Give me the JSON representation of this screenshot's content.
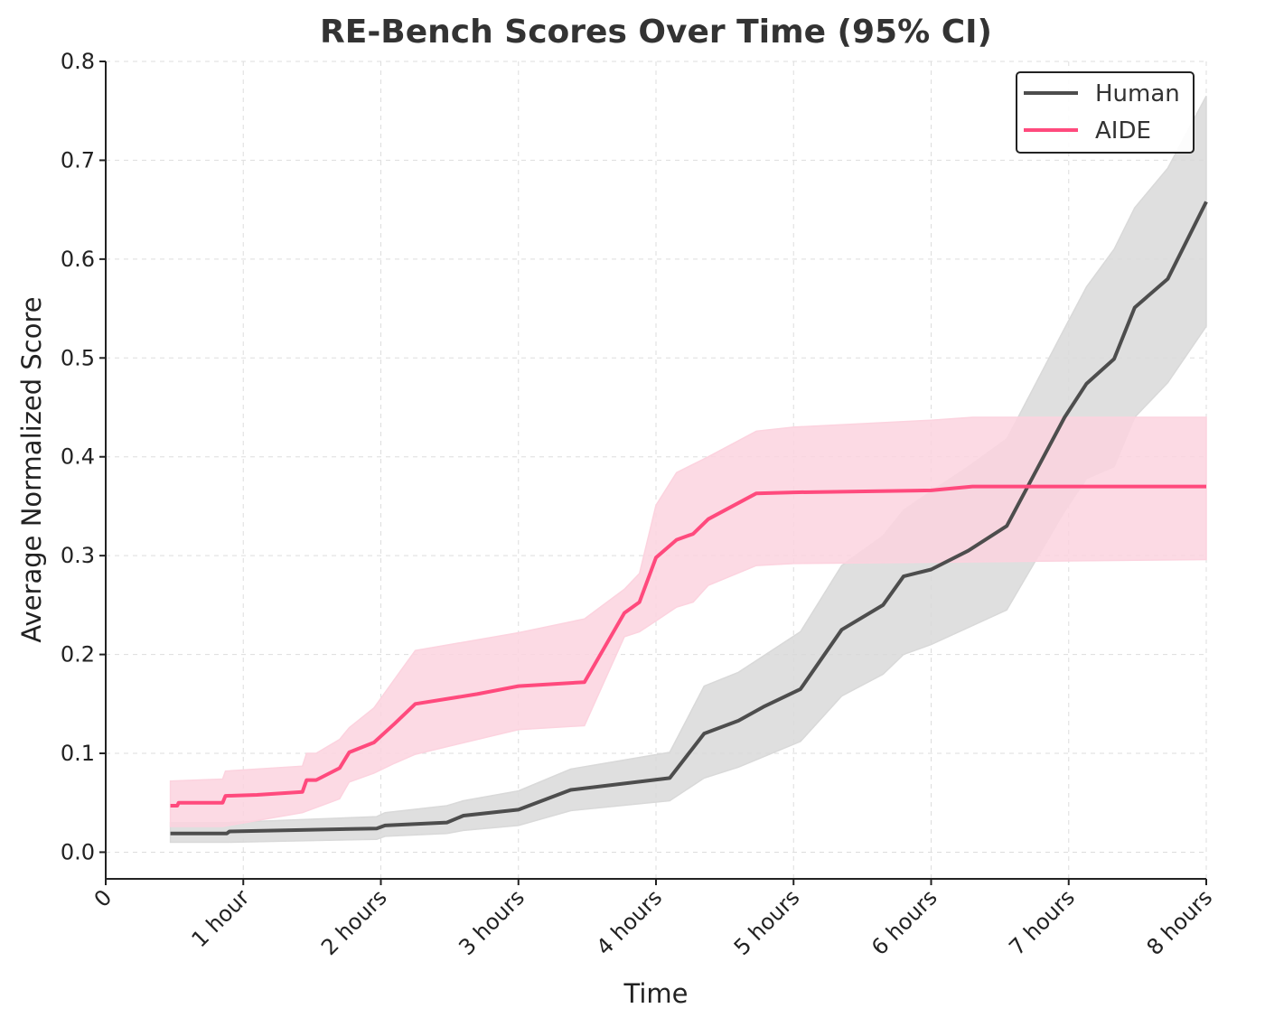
{
  "chart_data": {
    "type": "line",
    "title": "RE-Bench Scores Over Time (95% CI)",
    "xlabel": "Time",
    "ylabel": "Average Normalized Score",
    "xlim": [
      0,
      8
    ],
    "ylim": [
      -0.027,
      0.8
    ],
    "x_ticks": [
      {
        "value": 0,
        "label": "0"
      },
      {
        "value": 1,
        "label": "1 hour"
      },
      {
        "value": 2,
        "label": "2 hours"
      },
      {
        "value": 3,
        "label": "3 hours"
      },
      {
        "value": 4,
        "label": "4 hours"
      },
      {
        "value": 5,
        "label": "5 hours"
      },
      {
        "value": 6,
        "label": "6 hours"
      },
      {
        "value": 7,
        "label": "7 hours"
      },
      {
        "value": 8,
        "label": "8 hours"
      }
    ],
    "y_ticks": [
      {
        "value": 0.0,
        "label": "0.0"
      },
      {
        "value": 0.1,
        "label": "0.1"
      },
      {
        "value": 0.2,
        "label": "0.2"
      },
      {
        "value": 0.3,
        "label": "0.3"
      },
      {
        "value": 0.4,
        "label": "0.4"
      },
      {
        "value": 0.5,
        "label": "0.5"
      },
      {
        "value": 0.6,
        "label": "0.6"
      },
      {
        "value": 0.7,
        "label": "0.7"
      },
      {
        "value": 0.8,
        "label": "0.8"
      }
    ],
    "grid": true,
    "legend_position": "top-right",
    "series": [
      {
        "name": "Human",
        "color": "#4d4d4d",
        "band_color": "#d9d9d9",
        "points": [
          [
            0.47,
            0.019
          ],
          [
            0.88,
            0.019
          ],
          [
            0.9,
            0.021
          ],
          [
            1.97,
            0.024
          ],
          [
            2.03,
            0.027
          ],
          [
            2.48,
            0.03
          ],
          [
            2.6,
            0.037
          ],
          [
            3.0,
            0.043
          ],
          [
            3.38,
            0.063
          ],
          [
            4.1,
            0.075
          ],
          [
            4.35,
            0.12
          ],
          [
            4.6,
            0.133
          ],
          [
            4.78,
            0.147
          ],
          [
            5.05,
            0.165
          ],
          [
            5.35,
            0.225
          ],
          [
            5.65,
            0.25
          ],
          [
            5.8,
            0.279
          ],
          [
            6.0,
            0.286
          ],
          [
            6.27,
            0.305
          ],
          [
            6.55,
            0.33
          ],
          [
            6.97,
            0.44
          ],
          [
            7.13,
            0.474
          ],
          [
            7.33,
            0.499
          ],
          [
            7.48,
            0.551
          ],
          [
            7.72,
            0.58
          ],
          [
            8.0,
            0.658
          ]
        ],
        "lower": [
          [
            0.47,
            0.01
          ],
          [
            0.88,
            0.01
          ],
          [
            1.97,
            0.013
          ],
          [
            2.03,
            0.016
          ],
          [
            2.48,
            0.019
          ],
          [
            2.6,
            0.022
          ],
          [
            3.0,
            0.027
          ],
          [
            3.38,
            0.042
          ],
          [
            4.1,
            0.052
          ],
          [
            4.35,
            0.075
          ],
          [
            4.6,
            0.086
          ],
          [
            5.05,
            0.112
          ],
          [
            5.35,
            0.158
          ],
          [
            5.65,
            0.18
          ],
          [
            5.8,
            0.2
          ],
          [
            6.0,
            0.21
          ],
          [
            6.55,
            0.245
          ],
          [
            6.97,
            0.345
          ],
          [
            7.13,
            0.378
          ],
          [
            7.33,
            0.39
          ],
          [
            7.48,
            0.44
          ],
          [
            7.72,
            0.475
          ],
          [
            8.0,
            0.532
          ]
        ],
        "upper": [
          [
            0.47,
            0.03
          ],
          [
            0.88,
            0.03
          ],
          [
            1.97,
            0.036
          ],
          [
            2.03,
            0.04
          ],
          [
            2.48,
            0.047
          ],
          [
            2.6,
            0.052
          ],
          [
            3.0,
            0.062
          ],
          [
            3.38,
            0.084
          ],
          [
            4.1,
            0.101
          ],
          [
            4.35,
            0.168
          ],
          [
            4.6,
            0.182
          ],
          [
            5.05,
            0.223
          ],
          [
            5.35,
            0.29
          ],
          [
            5.65,
            0.32
          ],
          [
            5.8,
            0.346
          ],
          [
            6.0,
            0.365
          ],
          [
            6.27,
            0.39
          ],
          [
            6.55,
            0.418
          ],
          [
            6.97,
            0.53
          ],
          [
            7.13,
            0.572
          ],
          [
            7.33,
            0.61
          ],
          [
            7.48,
            0.652
          ],
          [
            7.72,
            0.692
          ],
          [
            8.0,
            0.765
          ]
        ]
      },
      {
        "name": "AIDE",
        "color": "#ff4a7d",
        "band_color": "#fcd3df",
        "points": [
          [
            0.47,
            0.047
          ],
          [
            0.52,
            0.047
          ],
          [
            0.53,
            0.05
          ],
          [
            0.85,
            0.05
          ],
          [
            0.87,
            0.057
          ],
          [
            1.1,
            0.058
          ],
          [
            1.43,
            0.061
          ],
          [
            1.46,
            0.073
          ],
          [
            1.53,
            0.073
          ],
          [
            1.7,
            0.085
          ],
          [
            1.77,
            0.101
          ],
          [
            1.95,
            0.111
          ],
          [
            2.1,
            0.13
          ],
          [
            2.25,
            0.15
          ],
          [
            2.7,
            0.16
          ],
          [
            3.0,
            0.168
          ],
          [
            3.48,
            0.172
          ],
          [
            3.77,
            0.242
          ],
          [
            3.88,
            0.253
          ],
          [
            4.0,
            0.298
          ],
          [
            4.15,
            0.316
          ],
          [
            4.27,
            0.322
          ],
          [
            4.38,
            0.337
          ],
          [
            4.73,
            0.363
          ],
          [
            5.0,
            0.364
          ],
          [
            6.0,
            0.366
          ],
          [
            6.3,
            0.37
          ],
          [
            8.0,
            0.37
          ]
        ],
        "lower": [
          [
            0.47,
            0.026
          ],
          [
            0.85,
            0.026
          ],
          [
            1.43,
            0.04
          ],
          [
            1.7,
            0.054
          ],
          [
            1.77,
            0.071
          ],
          [
            1.95,
            0.08
          ],
          [
            2.1,
            0.09
          ],
          [
            2.25,
            0.099
          ],
          [
            3.0,
            0.124
          ],
          [
            3.48,
            0.128
          ],
          [
            3.77,
            0.218
          ],
          [
            3.88,
            0.223
          ],
          [
            4.0,
            0.234
          ],
          [
            4.15,
            0.248
          ],
          [
            4.27,
            0.253
          ],
          [
            4.38,
            0.27
          ],
          [
            4.73,
            0.29
          ],
          [
            5.0,
            0.292
          ],
          [
            8.0,
            0.296
          ]
        ],
        "upper": [
          [
            0.47,
            0.072
          ],
          [
            0.85,
            0.074
          ],
          [
            0.87,
            0.082
          ],
          [
            1.43,
            0.087
          ],
          [
            1.46,
            0.1
          ],
          [
            1.53,
            0.1
          ],
          [
            1.7,
            0.114
          ],
          [
            1.77,
            0.126
          ],
          [
            1.95,
            0.146
          ],
          [
            2.1,
            0.175
          ],
          [
            2.25,
            0.204
          ],
          [
            3.0,
            0.222
          ],
          [
            3.48,
            0.236
          ],
          [
            3.77,
            0.266
          ],
          [
            3.88,
            0.282
          ],
          [
            4.0,
            0.351
          ],
          [
            4.15,
            0.384
          ],
          [
            4.38,
            0.4
          ],
          [
            4.73,
            0.426
          ],
          [
            5.0,
            0.43
          ],
          [
            6.0,
            0.437
          ],
          [
            6.3,
            0.44
          ],
          [
            8.0,
            0.44
          ]
        ]
      }
    ]
  }
}
